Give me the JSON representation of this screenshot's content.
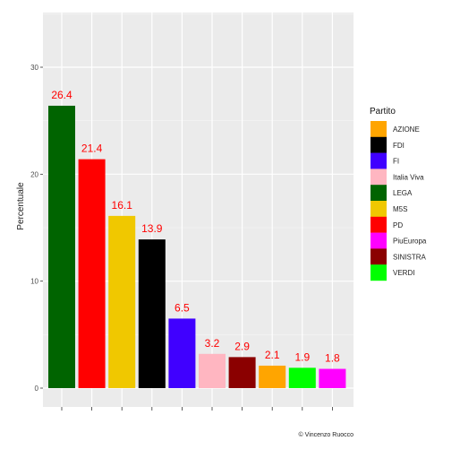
{
  "chart_data": {
    "type": "bar",
    "title": "",
    "xlabel": "",
    "ylabel": "Percentuale",
    "ylim": [
      0,
      36
    ],
    "yticks": [
      0,
      10,
      20,
      30
    ],
    "grid": true,
    "legend_title": "Partito",
    "legend_position": "right",
    "caption": "© Vincenzo Ruocco",
    "label_color": "#ff0000",
    "panel_color": "#ebebeb",
    "bars": [
      {
        "party": "LEGA",
        "value": 26.4,
        "label": "26.4"
      },
      {
        "party": "PD",
        "value": 21.4,
        "label": "21.4"
      },
      {
        "party": "M5S",
        "value": 16.1,
        "label": "16.1"
      },
      {
        "party": "FDI",
        "value": 13.9,
        "label": "13.9"
      },
      {
        "party": "FI",
        "value": 6.5,
        "label": "6.5"
      },
      {
        "party": "Italia Viva",
        "value": 3.2,
        "label": "3.2"
      },
      {
        "party": "SINISTRA",
        "value": 2.9,
        "label": "2.9"
      },
      {
        "party": "AZIONE",
        "value": 2.1,
        "label": "2.1"
      },
      {
        "party": "VERDI",
        "value": 1.9,
        "label": "1.9"
      },
      {
        "party": "PiuEuropa",
        "value": 1.8,
        "label": "1.8"
      }
    ],
    "legend": [
      {
        "name": "AZIONE",
        "color": "#ffa500"
      },
      {
        "name": "FDI",
        "color": "#000000"
      },
      {
        "name": "FI",
        "color": "#4000ff"
      },
      {
        "name": "Italia Viva",
        "color": "#ffb6c1"
      },
      {
        "name": "LEGA",
        "color": "#006400"
      },
      {
        "name": "M5S",
        "color": "#f0c800"
      },
      {
        "name": "PD",
        "color": "#ff0000"
      },
      {
        "name": "PiuEuropa",
        "color": "#ff00ff"
      },
      {
        "name": "SINISTRA",
        "color": "#8b0000"
      },
      {
        "name": "VERDI",
        "color": "#00ff00"
      }
    ]
  }
}
